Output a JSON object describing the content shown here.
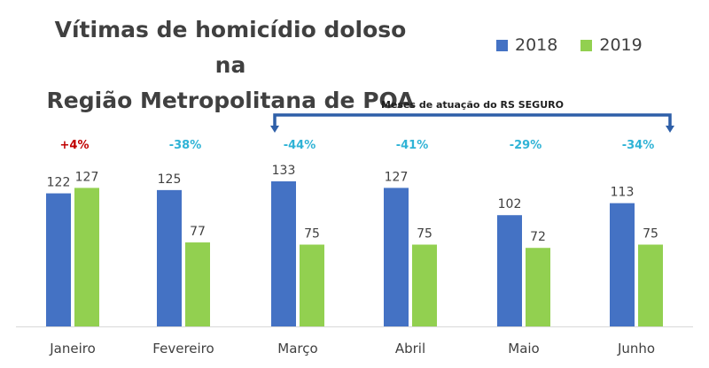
{
  "chart_data": {
    "type": "bar",
    "title_line1": "Vítimas de homicídio doloso na",
    "title_line2": "Região Metropolitana de POA",
    "categories": [
      "Janeiro",
      "Fevereiro",
      "Março",
      "Abril",
      "Maio",
      "Junho"
    ],
    "series": [
      {
        "name": "2018",
        "color": "#4472C4",
        "values": [
          122,
          125,
          133,
          127,
          102,
          113
        ]
      },
      {
        "name": "2019",
        "color": "#92D050",
        "values": [
          127,
          77,
          75,
          75,
          72,
          75
        ]
      }
    ],
    "changes": [
      "+4%",
      "-38%",
      "-44%",
      "-41%",
      "-29%",
      "-34%"
    ],
    "change_colors": {
      "increase": "#C00000",
      "decrease": "#2FB3D6"
    },
    "ylim": [
      0,
      140
    ],
    "grid": false,
    "legend_position": "top-right",
    "annotation": {
      "text": "Meses de atuação do RS SEGURO",
      "from_category": "Março",
      "to_category": "Junho",
      "color": "#2E5FA8"
    }
  }
}
